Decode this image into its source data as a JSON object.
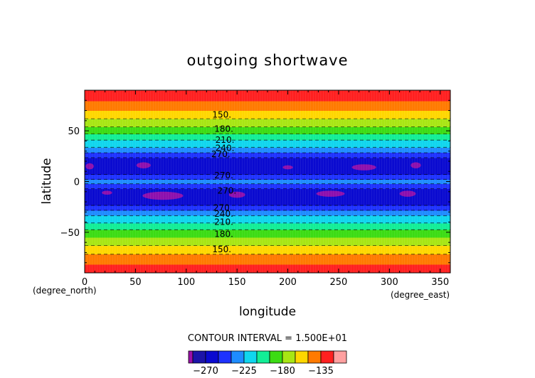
{
  "chart_data": {
    "type": "heatmap",
    "title": "outgoing shortwave",
    "xlabel": "longitude",
    "ylabel": "latitude",
    "x_unit": "(degree_east)",
    "y_unit": "(degree_north)",
    "xlim": [
      0,
      360
    ],
    "ylim": [
      -90,
      90
    ],
    "x_ticks": [
      0,
      50,
      100,
      150,
      200,
      250,
      300,
      350
    ],
    "x_tick_labels": [
      "0",
      "50",
      "100",
      "150",
      "200",
      "250",
      "300",
      "350"
    ],
    "y_ticks": [
      50,
      0,
      -50
    ],
    "y_tick_labels": [
      "50",
      "0",
      "−50"
    ],
    "contour_interval_text": "CONTOUR INTERVAL = 1.500E+01",
    "levels": [
      -300,
      -285,
      -270,
      -255,
      -240,
      -225,
      -210,
      -195,
      -180,
      -165,
      -150,
      -135,
      -120
    ],
    "level_colors": [
      "#9b0fa8",
      "#1c14a8",
      "#0a0ad0",
      "#1e32ff",
      "#1e8cff",
      "#10d6ee",
      "#12ee96",
      "#3cdc14",
      "#a8e614",
      "#ffd700",
      "#ff7a00",
      "#ff2020",
      "#ffa0a0"
    ],
    "colorbar_tick_values": [
      -270,
      -225,
      -180,
      -135
    ],
    "colorbar_tick_labels": [
      "−270",
      "−225",
      "−180",
      "−135"
    ],
    "latitude_band_values": {
      "latitudes": [
        -90,
        -85,
        -80,
        -75,
        -70,
        -65,
        -60,
        -55,
        -50,
        -45,
        -40,
        -35,
        -30,
        -25,
        -20,
        -15,
        -10,
        -5,
        0,
        5,
        10,
        15,
        20,
        25,
        30,
        35,
        40,
        45,
        50,
        55,
        60,
        65,
        70,
        75,
        80,
        85,
        90
      ],
      "values": [
        -122,
        -128,
        -138,
        -146,
        -152,
        -162,
        -170,
        -180,
        -190,
        -200,
        -212,
        -222,
        -234,
        -252,
        -262,
        -264,
        -262,
        -250,
        -232,
        -250,
        -262,
        -264,
        -262,
        -252,
        -234,
        -222,
        -212,
        -200,
        -188,
        -178,
        -168,
        -160,
        -150,
        -144,
        -134,
        -126,
        -122
      ]
    },
    "contour_labels": [
      {
        "text": "150.",
        "lon": 135,
        "lat": 66
      },
      {
        "text": "180.",
        "lon": 137,
        "lat": 52
      },
      {
        "text": "210.",
        "lon": 138,
        "lat": 41
      },
      {
        "text": "240.",
        "lon": 138,
        "lat": 33
      },
      {
        "text": "270.",
        "lon": 134,
        "lat": 27
      },
      {
        "text": "270.",
        "lon": 137,
        "lat": 6
      },
      {
        "text": "270.",
        "lon": 140,
        "lat": -9
      },
      {
        "text": "270.",
        "lon": 136,
        "lat": -26
      },
      {
        "text": "240.",
        "lon": 137,
        "lat": -32
      },
      {
        "text": "210.",
        "lon": 137,
        "lat": -40
      },
      {
        "text": "180.",
        "lon": 137,
        "lat": -52
      },
      {
        "text": "150.",
        "lon": 135,
        "lat": -67
      }
    ],
    "minimum_patches": [
      {
        "lon": 5,
        "lat": 15,
        "lon_extent": 4,
        "lat_extent": 3
      },
      {
        "lon": 58,
        "lat": 16,
        "lon_extent": 7,
        "lat_extent": 3
      },
      {
        "lon": 200,
        "lat": 14,
        "lon_extent": 5,
        "lat_extent": 2
      },
      {
        "lon": 275,
        "lat": 14,
        "lon_extent": 12,
        "lat_extent": 3
      },
      {
        "lon": 326,
        "lat": 16,
        "lon_extent": 5,
        "lat_extent": 3
      },
      {
        "lon": 77,
        "lat": -14,
        "lon_extent": 20,
        "lat_extent": 4
      },
      {
        "lon": 150,
        "lat": -13,
        "lon_extent": 8,
        "lat_extent": 3
      },
      {
        "lon": 242,
        "lat": -12,
        "lon_extent": 14,
        "lat_extent": 3
      },
      {
        "lon": 318,
        "lat": -12,
        "lon_extent": 8,
        "lat_extent": 3
      },
      {
        "lon": 22,
        "lat": -11,
        "lon_extent": 5,
        "lat_extent": 2
      }
    ]
  }
}
